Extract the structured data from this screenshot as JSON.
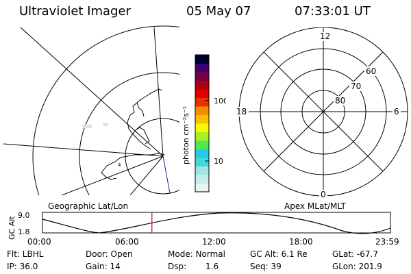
{
  "header": {
    "instrument": "Ultraviolet Imager",
    "date": "05 May 07",
    "time": "07:33:01 UT"
  },
  "colorbar": {
    "unit_label": "photon cm⁻²s⁻¹",
    "tick_100": "100",
    "tick_10": "10",
    "colors": [
      "#e8f4f4",
      "#c8ecec",
      "#a0e4e4",
      "#40d8d8",
      "#28c8e8",
      "#50e850",
      "#a8f020",
      "#f8f800",
      "#f8c000",
      "#f09000",
      "#e83000",
      "#e00000",
      "#b00010",
      "#780040",
      "#400070",
      "#000030"
    ]
  },
  "left_map": {
    "caption": "Geographic Lat/Lon",
    "coast_mark": "4"
  },
  "right_map": {
    "caption": "Apex MLat/MLT",
    "mlt_labels": {
      "top": "12",
      "left": "18",
      "right": "6",
      "bottom": "0"
    },
    "mlat_labels": [
      "60",
      "70",
      "80"
    ]
  },
  "timeline": {
    "axis_title": "GC Alt",
    "y_top": "9.0",
    "y_bottom": "1.8",
    "x_ticks": [
      "00:00",
      "06:00",
      "12:00",
      "18:00",
      "23:59"
    ],
    "marker_time_hours": 7.55
  },
  "info": {
    "filter": "Flt: LBHL",
    "ip": "IP: 36.0",
    "door": "Door: Open",
    "gain": "Gain: 14",
    "mode": "Mode: Normal",
    "dsp_label": "Dsp:",
    "dsp_value": "1.6",
    "gc_alt": "GC Alt: 6.1 Re",
    "seq": "Seq: 39",
    "glat": "GLat: -67.7",
    "glon": "GLon: 201.9"
  }
}
